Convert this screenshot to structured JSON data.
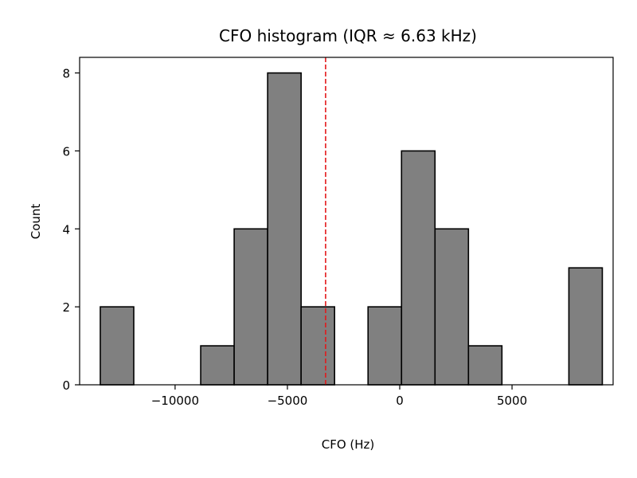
{
  "chart_data": {
    "type": "bar",
    "title": "CFO histogram (IQR ≈ 6.63 kHz)",
    "xlabel": "CFO (Hz)",
    "ylabel": "Count",
    "xlim": [
      -14250,
      9500
    ],
    "ylim": [
      0,
      8.4
    ],
    "xticks": [
      -10000,
      -5000,
      0,
      5000
    ],
    "xtick_labels": [
      "−10000",
      "−5000",
      "0",
      "5000"
    ],
    "yticks": [
      0,
      2,
      4,
      6,
      8
    ],
    "ytick_labels": [
      "0",
      "2",
      "4",
      "6",
      "8"
    ],
    "bin_edges": [
      -13500,
      -12000,
      -10500,
      -9000,
      -7500,
      -6000,
      -4500,
      -3000,
      -1500,
      0,
      1500,
      3000,
      4500,
      6000,
      7500,
      9000
    ],
    "bins": [
      {
        "x0": -13330,
        "x1": -11840,
        "count": 2
      },
      {
        "x0": -11840,
        "x1": -10350,
        "count": 0
      },
      {
        "x0": -10350,
        "x1": -8860,
        "count": 0
      },
      {
        "x0": -8860,
        "x1": -7370,
        "count": 1
      },
      {
        "x0": -7370,
        "x1": -5880,
        "count": 4
      },
      {
        "x0": -5880,
        "x1": -4390,
        "count": 8
      },
      {
        "x0": -4390,
        "x1": -2900,
        "count": 2
      },
      {
        "x0": -2900,
        "x1": -1410,
        "count": 0
      },
      {
        "x0": -1410,
        "x1": 80,
        "count": 2
      },
      {
        "x0": 80,
        "x1": 1570,
        "count": 6
      },
      {
        "x0": 1570,
        "x1": 3060,
        "count": 4
      },
      {
        "x0": 3060,
        "x1": 4550,
        "count": 1
      },
      {
        "x0": 4550,
        "x1": 6040,
        "count": 0
      },
      {
        "x0": 6040,
        "x1": 7530,
        "count": 0
      },
      {
        "x0": 7530,
        "x1": 9020,
        "count": 3
      }
    ],
    "reference_line": {
      "x": -3300,
      "style": "dashed"
    },
    "grid": false,
    "colors": {
      "bar_fill": "#808080",
      "bar_edge": "#000000",
      "reference_line": "#e31a1c"
    }
  }
}
